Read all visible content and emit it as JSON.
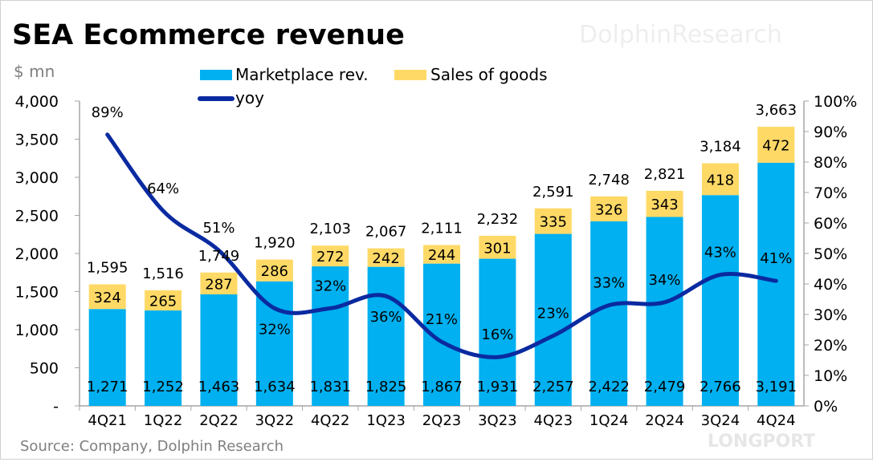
{
  "chart_data": {
    "type": "bar",
    "subtype": "stacked bar with line on secondary axis",
    "title": "SEA Ecommerce revenue",
    "unit_label": "$ mn",
    "source": "Source: Company, Dolphin Research",
    "watermark": "海豚投研 DolphinResearch",
    "logo_text": "LONGPORT",
    "categories": [
      "4Q21",
      "1Q22",
      "2Q22",
      "3Q22",
      "4Q22",
      "1Q23",
      "2Q23",
      "3Q23",
      "4Q23",
      "1Q24",
      "2Q24",
      "3Q24",
      "4Q24"
    ],
    "series": [
      {
        "name": "Marketplace rev.",
        "type": "bar",
        "axis": "left",
        "color": "#00B0F0",
        "values": [
          1271,
          1252,
          1463,
          1634,
          1831,
          1825,
          1867,
          1931,
          2257,
          2422,
          2479,
          2766,
          3191
        ],
        "labels": [
          "1,271",
          "1,252",
          "1,463",
          "1,634",
          "1,831",
          "1,825",
          "1,867",
          "1,931",
          "2,257",
          "2,422",
          "2,479",
          "2,766",
          "3,191"
        ]
      },
      {
        "name": "Sales of goods",
        "type": "bar",
        "axis": "left",
        "color": "#FFD966",
        "values": [
          324,
          265,
          287,
          286,
          272,
          242,
          244,
          301,
          335,
          326,
          343,
          418,
          472
        ],
        "labels": [
          "324",
          "265",
          "287",
          "286",
          "272",
          "242",
          "244",
          "301",
          "335",
          "326",
          "343",
          "418",
          "472"
        ]
      },
      {
        "name": "yoy",
        "type": "line",
        "axis": "right",
        "color": "#0A2AA0",
        "values": [
          89,
          64,
          51,
          32,
          32,
          36,
          21,
          16,
          23,
          33,
          34,
          43,
          41
        ],
        "labels": [
          "89%",
          "64%",
          "51%",
          "32%",
          "32%",
          "36%",
          "21%",
          "16%",
          "23%",
          "33%",
          "34%",
          "43%",
          "41%"
        ]
      }
    ],
    "totals": {
      "values": [
        1595,
        1516,
        1749,
        1920,
        2103,
        2067,
        2111,
        2232,
        2591,
        2748,
        2821,
        3184,
        3663
      ],
      "labels": [
        "1,595",
        "1,516",
        "1,749",
        "1,920",
        "2,103",
        "2,067",
        "2,111",
        "2,232",
        "2,591",
        "2,748",
        "2,821",
        "3,184",
        "3,663"
      ]
    },
    "y_left": {
      "range": [
        0,
        4000
      ],
      "ticks": [
        "-",
        "500",
        "1,000",
        "1,500",
        "2,000",
        "2,500",
        "3,000",
        "3,500",
        "4,000"
      ]
    },
    "y_right": {
      "range": [
        0,
        100
      ],
      "ticks": [
        "0%",
        "10%",
        "20%",
        "30%",
        "40%",
        "50%",
        "60%",
        "70%",
        "80%",
        "90%",
        "100%"
      ]
    },
    "grid": false,
    "legend": "top"
  }
}
